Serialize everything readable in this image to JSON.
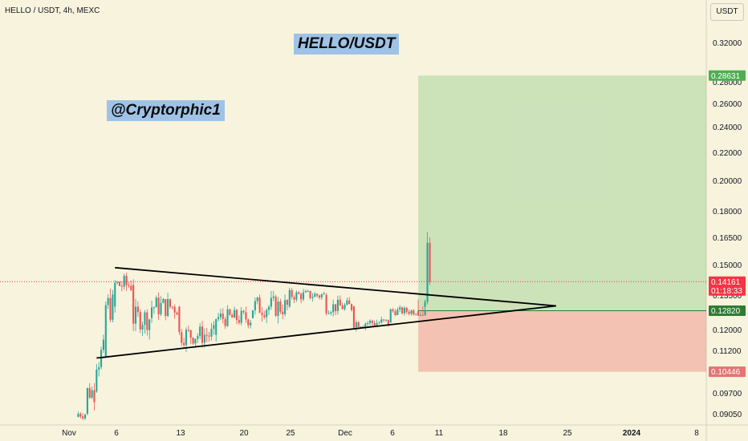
{
  "chart_data": {
    "type": "candlestick",
    "symbol_header": "HELLO / USDT, 4h, MEXC",
    "title": "HELLO/USDT",
    "y_unit": "USDT",
    "annotations": {
      "handle": "@Cryptorphic1"
    },
    "x_ticks": [
      "Nov",
      "6",
      "13",
      "20",
      "25",
      "Dec",
      "6",
      "11",
      "18",
      "25",
      "2024",
      "8"
    ],
    "x_ticks_bold": [
      "2024"
    ],
    "y_ticks": [
      "0.32000",
      "0.28000",
      "0.26000",
      "0.24000",
      "0.22000",
      "0.20000",
      "0.18000",
      "0.16500",
      "0.15000",
      "0.13500",
      "0.12000",
      "0.11200",
      "0.09700",
      "0.09050"
    ],
    "price_labels": [
      {
        "value": "0.28631",
        "kind": "target",
        "color": "#4caf50"
      },
      {
        "value": "0.14161",
        "kind": "last",
        "color": "#f23645",
        "countdown": "01:18:33"
      },
      {
        "value": "0.12820",
        "kind": "entry",
        "color": "#2e7d32"
      },
      {
        "value": "0.10446",
        "kind": "stop",
        "color": "#e57373"
      }
    ],
    "position": {
      "target": 0.28631,
      "entry": 0.1282,
      "stop": 0.10446,
      "start": "Dec 9",
      "end": "2024 Jan 8"
    },
    "triangle": {
      "upper": [
        [
          "Nov 6",
          0.1485
        ],
        [
          "Dec 24",
          0.1303
        ]
      ],
      "lower": [
        [
          "Nov 4",
          0.1093
        ],
        [
          "Dec 24",
          0.1303
        ]
      ]
    },
    "last_price": 0.14161,
    "candles_approx": [
      {
        "date": "Nov 2",
        "o": 0.0895,
        "h": 0.0912,
        "l": 0.0885,
        "c": 0.0905
      },
      {
        "date": "Nov 3",
        "o": 0.0905,
        "h": 0.0982,
        "l": 0.09,
        "c": 0.0975
      },
      {
        "date": "Nov 4",
        "o": 0.0975,
        "h": 0.1115,
        "l": 0.097,
        "c": 0.11
      },
      {
        "date": "Nov 5",
        "o": 0.11,
        "h": 0.133,
        "l": 0.109,
        "c": 0.13
      },
      {
        "date": "Nov 6",
        "o": 0.13,
        "h": 0.148,
        "l": 0.127,
        "c": 0.14
      },
      {
        "date": "Nov 8",
        "o": 0.14,
        "h": 0.145,
        "l": 0.12,
        "c": 0.125
      },
      {
        "date": "Nov 10",
        "o": 0.125,
        "h": 0.138,
        "l": 0.115,
        "c": 0.13
      },
      {
        "date": "Nov 13",
        "o": 0.13,
        "h": 0.133,
        "l": 0.11,
        "c": 0.118
      },
      {
        "date": "Nov 17",
        "o": 0.118,
        "h": 0.132,
        "l": 0.114,
        "c": 0.125
      },
      {
        "date": "Nov 21",
        "o": 0.125,
        "h": 0.134,
        "l": 0.112,
        "c": 0.13
      },
      {
        "date": "Nov 25",
        "o": 0.13,
        "h": 0.14,
        "l": 0.125,
        "c": 0.135
      },
      {
        "date": "Nov 29",
        "o": 0.135,
        "h": 0.136,
        "l": 0.125,
        "c": 0.13
      },
      {
        "date": "Dec 2",
        "o": 0.13,
        "h": 0.133,
        "l": 0.119,
        "c": 0.123
      },
      {
        "date": "Dec 6",
        "o": 0.123,
        "h": 0.131,
        "l": 0.122,
        "c": 0.128
      },
      {
        "date": "Dec 9",
        "o": 0.128,
        "h": 0.132,
        "l": 0.126,
        "c": 0.13
      },
      {
        "date": "Dec 10",
        "o": 0.13,
        "h": 0.168,
        "l": 0.129,
        "c": 0.1416
      }
    ],
    "grid": false,
    "legend": "none"
  }
}
